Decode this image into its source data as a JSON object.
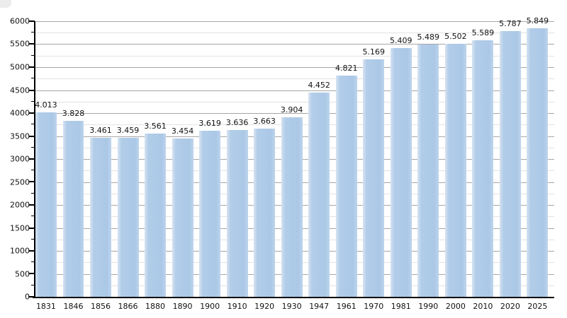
{
  "page": {
    "background_color": "#ffffff"
  },
  "chart_data": {
    "type": "bar",
    "title": "",
    "xlabel": "",
    "ylabel": "",
    "categories": [
      "1831",
      "1846",
      "1856",
      "1866",
      "1880",
      "1890",
      "1900",
      "1910",
      "1920",
      "1930",
      "1947",
      "1961",
      "1970",
      "1981",
      "1990",
      "2000",
      "2010",
      "2020",
      "2025"
    ],
    "values": [
      4013,
      3828,
      3461,
      3459,
      3561,
      3454,
      3619,
      3636,
      3663,
      3904,
      4452,
      4821,
      5169,
      5409,
      5489,
      5502,
      5589,
      5787,
      5849
    ],
    "value_labels": [
      "4.013",
      "3.828",
      "3.461",
      "3.459",
      "3.561",
      "3.454",
      "3.619",
      "3.636",
      "3.663",
      "3.904",
      "4.452",
      "4.821",
      "5.169",
      "5.409",
      "5.489",
      "5.502",
      "5.589",
      "5.787",
      "5.849"
    ],
    "ylim": [
      0,
      6000
    ],
    "y_major_step": 500,
    "y_minor_step": 250,
    "y_tick_labels": [
      "0",
      "500",
      "1000",
      "1500",
      "2000",
      "2500",
      "3000",
      "3500",
      "4000",
      "4500",
      "5000",
      "5500",
      "6000"
    ],
    "grid": "major-and-minor-horizontal",
    "legend": "none",
    "colors": {
      "bar_fill": "#abc8e7",
      "bar_edge_highlight": "#d7e3f2",
      "grid_major": "#a6a6a6",
      "grid_minor": "#e2e2e2",
      "axis": "#000000",
      "text": "#111111",
      "background": "#ffffff",
      "corner_artifact": "#ececec"
    }
  }
}
